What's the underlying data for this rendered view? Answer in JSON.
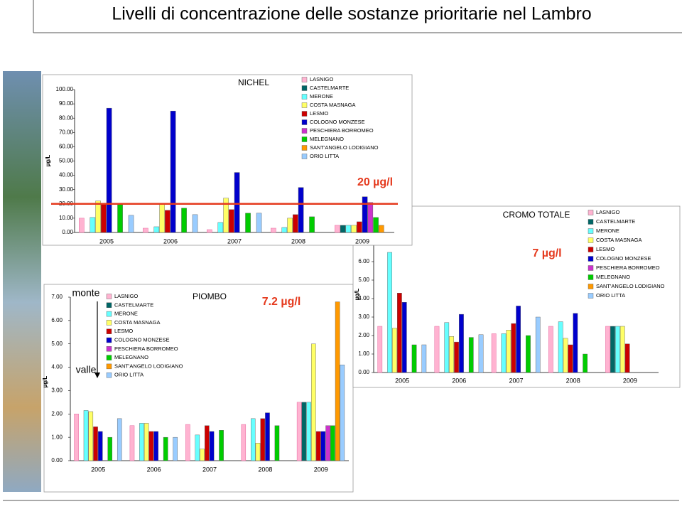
{
  "header": {
    "title": "Livelli di concentrazione delle sostanze prioritarie nel Lambro"
  },
  "chart_data": [
    {
      "type": "bar",
      "title": "NICHEL",
      "y_label": "µg/L",
      "categories": [
        "2005",
        "2006",
        "2007",
        "2008",
        "2009"
      ],
      "ylim": [
        0,
        100
      ],
      "yticks": [
        {
          "value": 0,
          "label": "0.00"
        },
        {
          "value": 10,
          "label": "10.00"
        },
        {
          "value": 20,
          "label": "20.00"
        },
        {
          "value": 30,
          "label": "30.00"
        },
        {
          "value": 40,
          "label": "40.00"
        },
        {
          "value": 50,
          "label": "50.00"
        },
        {
          "value": 60,
          "label": "60.00"
        },
        {
          "value": 70,
          "label": "70.00"
        },
        {
          "value": 80,
          "label": "80.00"
        },
        {
          "value": 90,
          "label": "90.00"
        },
        {
          "value": 100,
          "label": "100.00"
        }
      ],
      "threshold": {
        "value": 20,
        "label": "20 µg/l",
        "color": "#e53a1e"
      },
      "series": [
        {
          "name": "LASNIGO",
          "color": "#ffb3d1",
          "values": [
            10,
            3,
            2,
            3,
            5
          ]
        },
        {
          "name": "CASTELMARTE",
          "color": "#006666",
          "values": [
            null,
            null,
            null,
            null,
            5
          ]
        },
        {
          "name": "MERONE",
          "color": "#66ffff",
          "values": [
            10.5,
            4,
            7,
            3.5,
            5
          ]
        },
        {
          "name": "COSTA MASNAGA",
          "color": "#ffff66",
          "values": [
            22,
            20,
            24,
            10,
            5
          ]
        },
        {
          "name": "LESMO",
          "color": "#cc0000",
          "values": [
            20,
            15.5,
            16,
            12.5,
            7.5
          ]
        },
        {
          "name": "COLOGNO MONZESE",
          "color": "#0000cc",
          "values": [
            87,
            85,
            42,
            31.5,
            25
          ]
        },
        {
          "name": "PESCHIERA BORROMEO",
          "color": "#cc33cc",
          "values": [
            null,
            null,
            null,
            null,
            21
          ]
        },
        {
          "name": "MELEGNANO",
          "color": "#00cc00",
          "values": [
            20,
            17,
            13.5,
            11,
            10.5
          ]
        },
        {
          "name": "SANT'ANGELO LODIGIANO",
          "color": "#ff9900",
          "values": [
            null,
            null,
            null,
            null,
            5
          ]
        },
        {
          "name": "ORIO LITTA",
          "color": "#99ccff",
          "values": [
            12,
            12.5,
            13.5,
            null,
            null
          ]
        }
      ]
    },
    {
      "type": "bar",
      "title": "PIOMBO",
      "y_label": "µg/L",
      "categories": [
        "2005",
        "2006",
        "2007",
        "2008",
        "2009"
      ],
      "ylim": [
        0,
        7
      ],
      "yticks": [
        {
          "value": 0,
          "label": "0.00"
        },
        {
          "value": 1,
          "label": "1.00"
        },
        {
          "value": 2,
          "label": "2.00"
        },
        {
          "value": 3,
          "label": "3.00"
        },
        {
          "value": 4,
          "label": "4.00"
        },
        {
          "value": 5,
          "label": "5.00"
        },
        {
          "value": 6,
          "label": "6.00"
        },
        {
          "value": 7,
          "label": "7.00"
        }
      ],
      "annotations": [
        "7.2 µg/l",
        "monte",
        "valle"
      ],
      "series": [
        {
          "name": "LASNIGO",
          "color": "#ffb3d1",
          "values": [
            2,
            1.5,
            1.55,
            1.55,
            2.5
          ]
        },
        {
          "name": "CASTELMARTE",
          "color": "#006666",
          "values": [
            null,
            null,
            null,
            null,
            2.5
          ]
        },
        {
          "name": "MERONE",
          "color": "#66ffff",
          "values": [
            2.15,
            1.6,
            1.1,
            1.8,
            2.5
          ]
        },
        {
          "name": "COSTA MASNAGA",
          "color": "#ffff66",
          "values": [
            2.1,
            1.6,
            0.5,
            0.75,
            5.0
          ]
        },
        {
          "name": "LESMO",
          "color": "#cc0000",
          "values": [
            1.45,
            1.25,
            1.5,
            1.8,
            1.25
          ]
        },
        {
          "name": "COLOGNO MONZESE",
          "color": "#0000cc",
          "values": [
            1.25,
            1.25,
            1.25,
            2.05,
            1.25
          ]
        },
        {
          "name": "PESCHIERA BORROMEO",
          "color": "#cc33cc",
          "values": [
            null,
            null,
            null,
            null,
            1.5
          ]
        },
        {
          "name": "MELEGNANO",
          "color": "#00cc00",
          "values": [
            1.0,
            1.0,
            1.3,
            1.5,
            1.5
          ]
        },
        {
          "name": "SANT'ANGELO LODIGIANO",
          "color": "#ff9900",
          "values": [
            null,
            null,
            null,
            null,
            6.8
          ]
        },
        {
          "name": "ORIO LITTA",
          "color": "#99ccff",
          "values": [
            1.8,
            1.0,
            null,
            null,
            4.1
          ]
        }
      ]
    },
    {
      "type": "bar",
      "title": "CROMO TOTALE",
      "y_label": "µg/L",
      "categories": [
        "2005",
        "2006",
        "2007",
        "2008",
        "2009"
      ],
      "ylim": [
        0,
        7
      ],
      "yticks": [
        {
          "value": 0,
          "label": "0.00"
        },
        {
          "value": 1,
          "label": "1.00"
        },
        {
          "value": 2,
          "label": "2.00"
        },
        {
          "value": 3,
          "label": "3.00"
        },
        {
          "value": 4,
          "label": "4.00"
        },
        {
          "value": 5,
          "label": "5.00"
        },
        {
          "value": 6,
          "label": "6.00"
        }
      ],
      "annotations": [
        "7 µg/l"
      ],
      "series": [
        {
          "name": "LASNIGO",
          "color": "#ffb3d1",
          "values": [
            2.5,
            2.5,
            2.1,
            2.5,
            2.5
          ]
        },
        {
          "name": "CASTELMARTE",
          "color": "#006666",
          "values": [
            null,
            null,
            null,
            null,
            2.5
          ]
        },
        {
          "name": "MERONE",
          "color": "#66ffff",
          "values": [
            6.5,
            2.7,
            2.1,
            2.75,
            2.5
          ]
        },
        {
          "name": "COSTA MASNAGA",
          "color": "#ffff66",
          "values": [
            2.4,
            1.95,
            2.3,
            1.85,
            2.5
          ]
        },
        {
          "name": "LESMO",
          "color": "#cc0000",
          "values": [
            4.3,
            1.65,
            2.65,
            1.5,
            1.55
          ]
        },
        {
          "name": "COLOGNO MONZESE",
          "color": "#0000cc",
          "values": [
            3.8,
            3.15,
            3.6,
            3.2,
            null
          ]
        },
        {
          "name": "PESCHIERA BORROMEO",
          "color": "#cc33cc",
          "values": [
            null,
            null,
            null,
            null,
            null
          ]
        },
        {
          "name": "MELEGNANO",
          "color": "#00cc00",
          "values": [
            1.5,
            1.9,
            2.0,
            1.0,
            null
          ]
        },
        {
          "name": "SANT'ANGELO LODIGIANO",
          "color": "#ff9900",
          "values": [
            null,
            null,
            null,
            null,
            null
          ]
        },
        {
          "name": "ORIO LITTA",
          "color": "#99ccff",
          "values": [
            1.5,
            2.05,
            3.0,
            null,
            null
          ]
        }
      ]
    }
  ]
}
